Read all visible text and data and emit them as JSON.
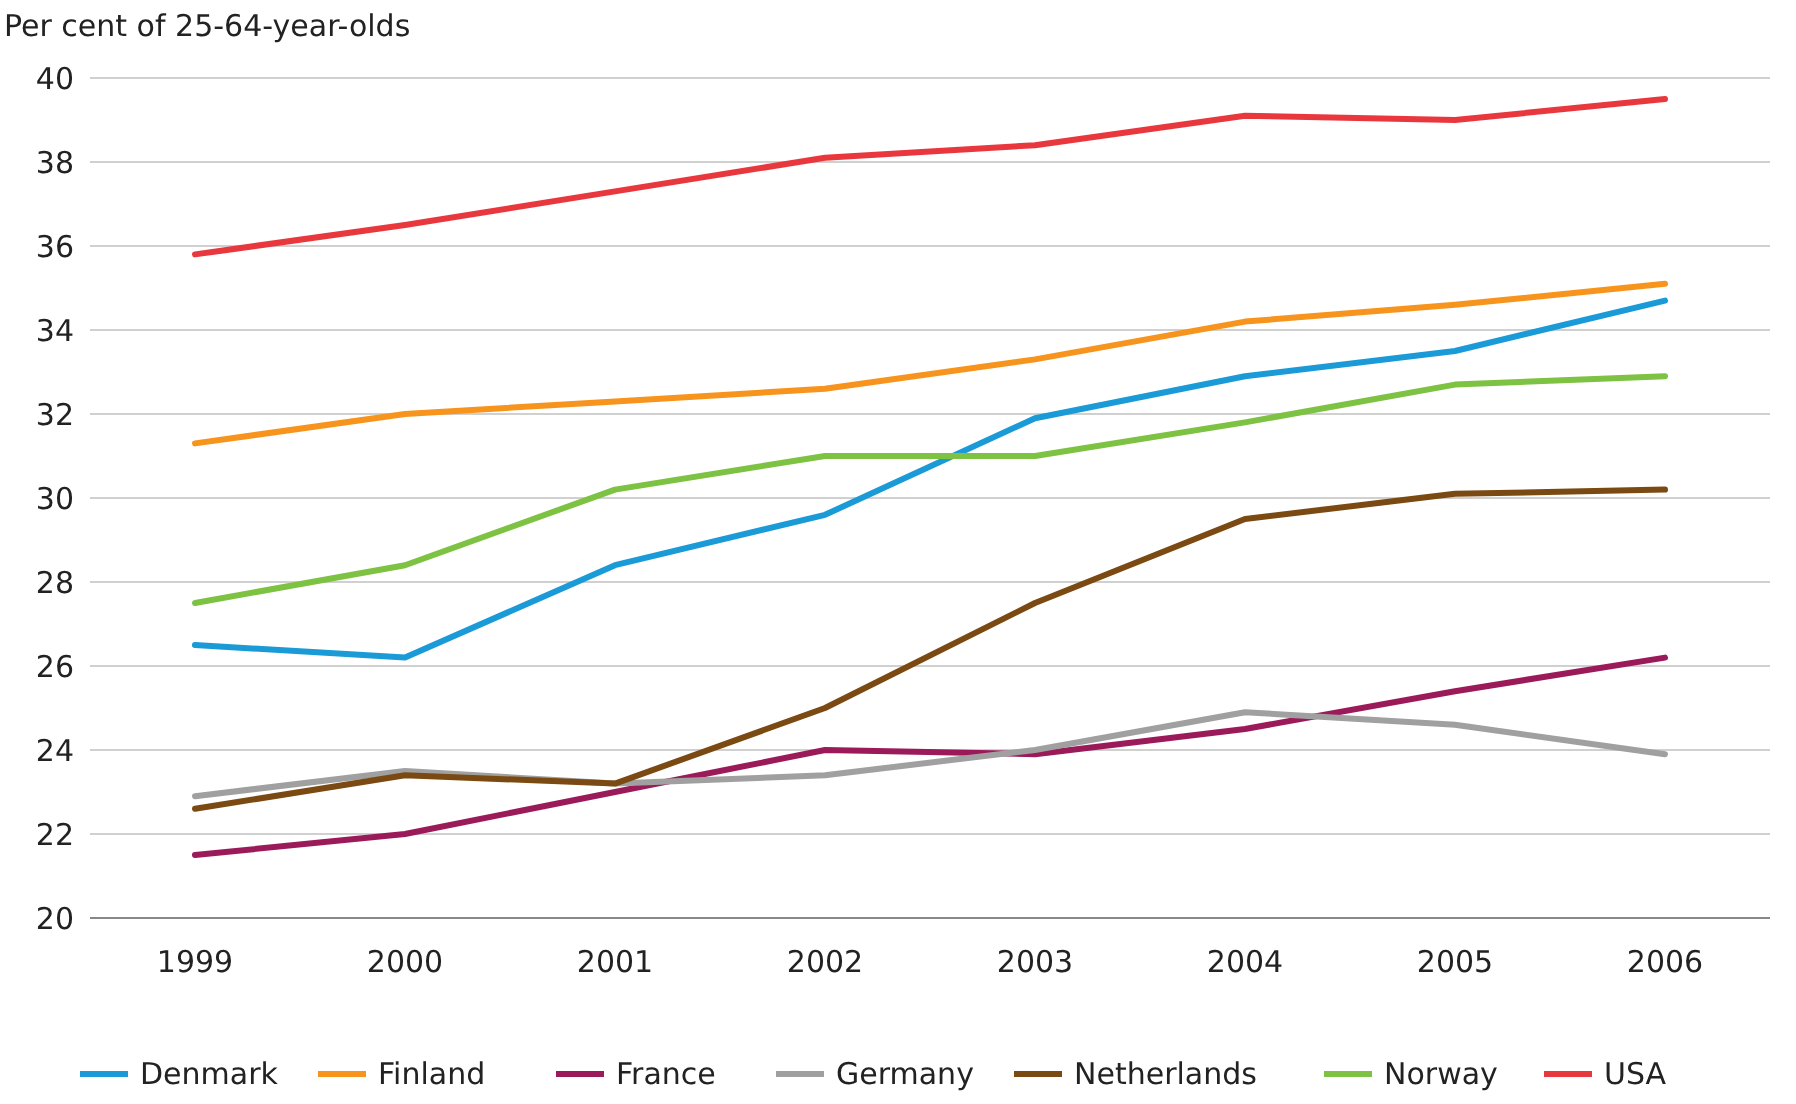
{
  "chart_data": {
    "type": "line",
    "ylabel": "Per cent of 25-64-year-olds",
    "categories": [
      "1999",
      "2000",
      "2001",
      "2002",
      "2003",
      "2004",
      "2005",
      "2006"
    ],
    "ylim": [
      20,
      40
    ],
    "yticks": [
      20,
      22,
      24,
      26,
      28,
      30,
      32,
      34,
      36,
      38,
      40
    ],
    "grid": "y",
    "legend": "bottom",
    "marker": "none",
    "line_style": "solid",
    "series": [
      {
        "name": "Denmark",
        "color": "#1a9ad6",
        "values": [
          26.5,
          26.2,
          28.4,
          29.6,
          31.9,
          32.9,
          33.5,
          34.7
        ]
      },
      {
        "name": "Finland",
        "color": "#f7941d",
        "values": [
          31.3,
          32.0,
          32.3,
          32.6,
          33.3,
          34.2,
          34.6,
          35.1
        ]
      },
      {
        "name": "France",
        "color": "#9b1b5a",
        "values": [
          21.5,
          22.0,
          23.0,
          24.0,
          23.9,
          24.5,
          25.4,
          26.2
        ]
      },
      {
        "name": "Germany",
        "color": "#a0a0a0",
        "values": [
          22.9,
          23.5,
          23.2,
          23.4,
          24.0,
          24.9,
          24.6,
          23.9
        ]
      },
      {
        "name": "Netherlands",
        "color": "#7b4a12",
        "values": [
          22.6,
          23.4,
          23.2,
          25.0,
          27.5,
          29.5,
          30.1,
          30.2
        ]
      },
      {
        "name": "Norway",
        "color": "#7dc242",
        "values": [
          27.5,
          28.4,
          30.2,
          31.0,
          31.0,
          31.8,
          32.7,
          32.9
        ]
      },
      {
        "name": "USA",
        "color": "#e8383d",
        "values": [
          35.8,
          36.5,
          37.3,
          38.1,
          38.4,
          39.1,
          39.0,
          39.5
        ]
      }
    ]
  }
}
